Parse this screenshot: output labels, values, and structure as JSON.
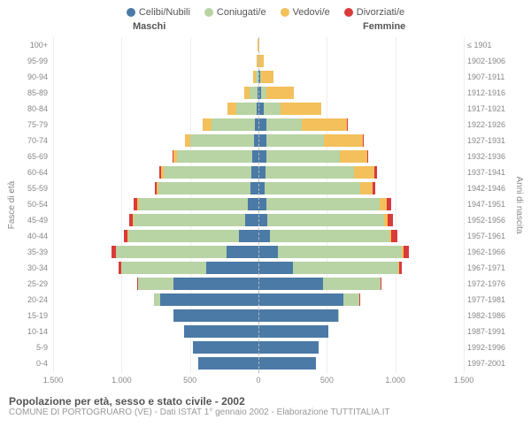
{
  "legend": [
    {
      "label": "Celibi/Nubili",
      "color": "#4b7aa6"
    },
    {
      "label": "Coniugati/e",
      "color": "#b8d3a4"
    },
    {
      "label": "Vedovi/e",
      "color": "#f3c05b"
    },
    {
      "label": "Divorziati/e",
      "color": "#d93a3a"
    }
  ],
  "header_left": "Maschi",
  "header_right": "Femmine",
  "y_left_title": "Fasce di età",
  "y_right_title": "Anni di nascita",
  "x_max": 1500,
  "x_ticks": [
    -1500,
    -1000,
    -500,
    0,
    500,
    1000,
    1500
  ],
  "x_tick_labels": [
    "1.500",
    "1.000",
    "500",
    "0",
    "500",
    "1.000",
    "1.500"
  ],
  "colors": {
    "single": "#4b7aa6",
    "married": "#b8d3a4",
    "widowed": "#f3c05b",
    "divorced": "#d93a3a",
    "grid": "#eeeeee",
    "center": "#bbbbbb"
  },
  "rows": [
    {
      "age": "100+",
      "birth": "≤ 1901",
      "m": {
        "single": 0,
        "married": 0,
        "widowed": 5,
        "divorced": 0
      },
      "f": {
        "single": 0,
        "married": 0,
        "widowed": 8,
        "divorced": 0
      }
    },
    {
      "age": "95-99",
      "birth": "1902-1906",
      "m": {
        "single": 0,
        "married": 3,
        "widowed": 10,
        "divorced": 0
      },
      "f": {
        "single": 3,
        "married": 3,
        "widowed": 35,
        "divorced": 0
      }
    },
    {
      "age": "90-94",
      "birth": "1907-1911",
      "m": {
        "single": 3,
        "married": 15,
        "widowed": 20,
        "divorced": 0
      },
      "f": {
        "single": 10,
        "married": 10,
        "widowed": 90,
        "divorced": 0
      }
    },
    {
      "age": "85-89",
      "birth": "1912-1916",
      "m": {
        "single": 8,
        "married": 55,
        "widowed": 40,
        "divorced": 0
      },
      "f": {
        "single": 20,
        "married": 40,
        "widowed": 200,
        "divorced": 0
      }
    },
    {
      "age": "80-84",
      "birth": "1917-1921",
      "m": {
        "single": 15,
        "married": 150,
        "widowed": 60,
        "divorced": 0
      },
      "f": {
        "single": 40,
        "married": 120,
        "widowed": 300,
        "divorced": 0
      }
    },
    {
      "age": "75-79",
      "birth": "1922-1926",
      "m": {
        "single": 25,
        "married": 320,
        "widowed": 60,
        "divorced": 3
      },
      "f": {
        "single": 55,
        "married": 260,
        "widowed": 330,
        "divorced": 5
      }
    },
    {
      "age": "70-74",
      "birth": "1927-1931",
      "m": {
        "single": 35,
        "married": 460,
        "widowed": 40,
        "divorced": 5
      },
      "f": {
        "single": 60,
        "married": 420,
        "widowed": 280,
        "divorced": 8
      }
    },
    {
      "age": "65-69",
      "birth": "1932-1936",
      "m": {
        "single": 45,
        "married": 550,
        "widowed": 25,
        "divorced": 8
      },
      "f": {
        "single": 55,
        "married": 540,
        "widowed": 200,
        "divorced": 10
      }
    },
    {
      "age": "60-64",
      "birth": "1937-1941",
      "m": {
        "single": 55,
        "married": 640,
        "widowed": 18,
        "divorced": 10
      },
      "f": {
        "single": 50,
        "married": 650,
        "widowed": 150,
        "divorced": 15
      }
    },
    {
      "age": "55-59",
      "birth": "1942-1946",
      "m": {
        "single": 60,
        "married": 670,
        "widowed": 12,
        "divorced": 15
      },
      "f": {
        "single": 45,
        "married": 700,
        "widowed": 90,
        "divorced": 20
      }
    },
    {
      "age": "50-54",
      "birth": "1947-1951",
      "m": {
        "single": 75,
        "married": 800,
        "widowed": 10,
        "divorced": 25
      },
      "f": {
        "single": 55,
        "married": 830,
        "widowed": 55,
        "divorced": 30
      }
    },
    {
      "age": "45-49",
      "birth": "1952-1956",
      "m": {
        "single": 100,
        "married": 810,
        "widowed": 6,
        "divorced": 30
      },
      "f": {
        "single": 65,
        "married": 850,
        "widowed": 30,
        "divorced": 35
      }
    },
    {
      "age": "40-44",
      "birth": "1957-1961",
      "m": {
        "single": 140,
        "married": 810,
        "widowed": 4,
        "divorced": 30
      },
      "f": {
        "single": 85,
        "married": 870,
        "widowed": 18,
        "divorced": 40
      }
    },
    {
      "age": "35-39",
      "birth": "1962-1966",
      "m": {
        "single": 230,
        "married": 810,
        "widowed": 3,
        "divorced": 28
      },
      "f": {
        "single": 140,
        "married": 910,
        "widowed": 10,
        "divorced": 40
      }
    },
    {
      "age": "30-34",
      "birth": "1967-1971",
      "m": {
        "single": 380,
        "married": 620,
        "widowed": 2,
        "divorced": 18
      },
      "f": {
        "single": 250,
        "married": 770,
        "widowed": 5,
        "divorced": 25
      }
    },
    {
      "age": "25-29",
      "birth": "1972-1976",
      "m": {
        "single": 620,
        "married": 260,
        "widowed": 0,
        "divorced": 6
      },
      "f": {
        "single": 470,
        "married": 420,
        "widowed": 2,
        "divorced": 10
      }
    },
    {
      "age": "20-24",
      "birth": "1977-1981",
      "m": {
        "single": 720,
        "married": 40,
        "widowed": 0,
        "divorced": 0
      },
      "f": {
        "single": 620,
        "married": 120,
        "widowed": 0,
        "divorced": 2
      }
    },
    {
      "age": "15-19",
      "birth": "1982-1986",
      "m": {
        "single": 620,
        "married": 0,
        "widowed": 0,
        "divorced": 0
      },
      "f": {
        "single": 580,
        "married": 8,
        "widowed": 0,
        "divorced": 0
      }
    },
    {
      "age": "10-14",
      "birth": "1987-1991",
      "m": {
        "single": 540,
        "married": 0,
        "widowed": 0,
        "divorced": 0
      },
      "f": {
        "single": 510,
        "married": 0,
        "widowed": 0,
        "divorced": 0
      }
    },
    {
      "age": "5-9",
      "birth": "1992-1996",
      "m": {
        "single": 480,
        "married": 0,
        "widowed": 0,
        "divorced": 0
      },
      "f": {
        "single": 440,
        "married": 0,
        "widowed": 0,
        "divorced": 0
      }
    },
    {
      "age": "0-4",
      "birth": "1997-2001",
      "m": {
        "single": 440,
        "married": 0,
        "widowed": 0,
        "divorced": 0
      },
      "f": {
        "single": 420,
        "married": 0,
        "widowed": 0,
        "divorced": 0
      }
    }
  ],
  "title": "Popolazione per età, sesso e stato civile - 2002",
  "subtitle": "COMUNE DI PORTOGRUARO (VE) - Dati ISTAT 1° gennaio 2002 - Elaborazione TUTTITALIA.IT"
}
